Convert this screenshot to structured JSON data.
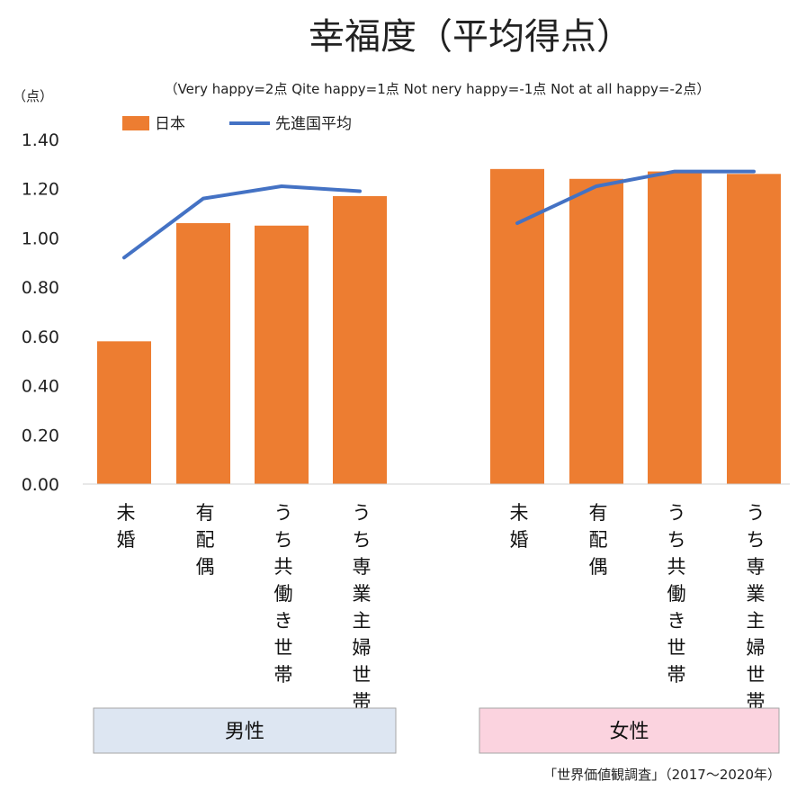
{
  "chart_data": {
    "type": "bar",
    "title": "幸福度（平均得点）",
    "subtitle": "（Very happy=2点 Qite happy=1点 Not nery happy=-1点 Not at all happy=-2点）",
    "unit_label": "（点）",
    "yticks": [
      "0.00",
      "0.20",
      "0.40",
      "0.60",
      "0.80",
      "1.00",
      "1.20",
      "1.40"
    ],
    "ylim": [
      0,
      1.4
    ],
    "grid": false,
    "legend_position": "top-left",
    "groups": [
      {
        "label": "男性",
        "color": "#dde6f2",
        "categories": [
          "未婚",
          "有配偶",
          "うち共働き世帯",
          "うち専業主婦世帯"
        ],
        "bar_values": [
          0.58,
          1.06,
          1.05,
          1.17
        ],
        "line_values": [
          0.92,
          1.16,
          1.21,
          1.19
        ]
      },
      {
        "label": "女性",
        "color": "#fbd3df",
        "categories": [
          "未婚",
          "有配偶",
          "うち共働き世帯",
          "うち専業主婦世帯"
        ],
        "bar_values": [
          1.28,
          1.24,
          1.27,
          1.26
        ],
        "line_values": [
          1.06,
          1.21,
          1.27,
          1.27
        ]
      }
    ],
    "series": [
      {
        "name": "日本",
        "kind": "bar",
        "color": "#ed7d31"
      },
      {
        "name": "先進国平均",
        "kind": "line",
        "color": "#4472c4"
      }
    ],
    "source": "「世界価値観調査」（2017～2020年）"
  }
}
